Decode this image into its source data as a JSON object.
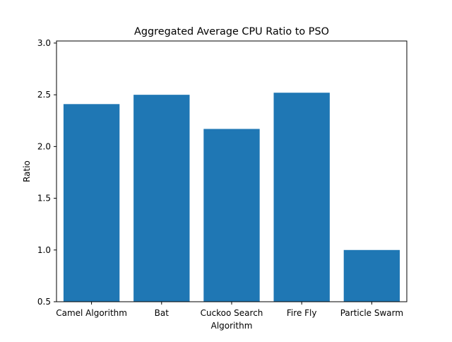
{
  "chart_data": {
    "type": "bar",
    "title": "Aggregated Average CPU Ratio to PSO",
    "xlabel": "Algorithm",
    "ylabel": "Ratio",
    "categories": [
      "Camel Algorithm",
      "Bat",
      "Cuckoo Search",
      "Fire Fly",
      "Particle Swarm"
    ],
    "values": [
      2.41,
      2.5,
      2.17,
      2.52,
      1.0
    ],
    "ylim": [
      0.5,
      3.02
    ],
    "yticks": [
      "0.5",
      "1.0",
      "1.5",
      "2.0",
      "2.5",
      "3.0"
    ],
    "bar_color": "#1f77b4",
    "grid": false,
    "legend": false
  }
}
